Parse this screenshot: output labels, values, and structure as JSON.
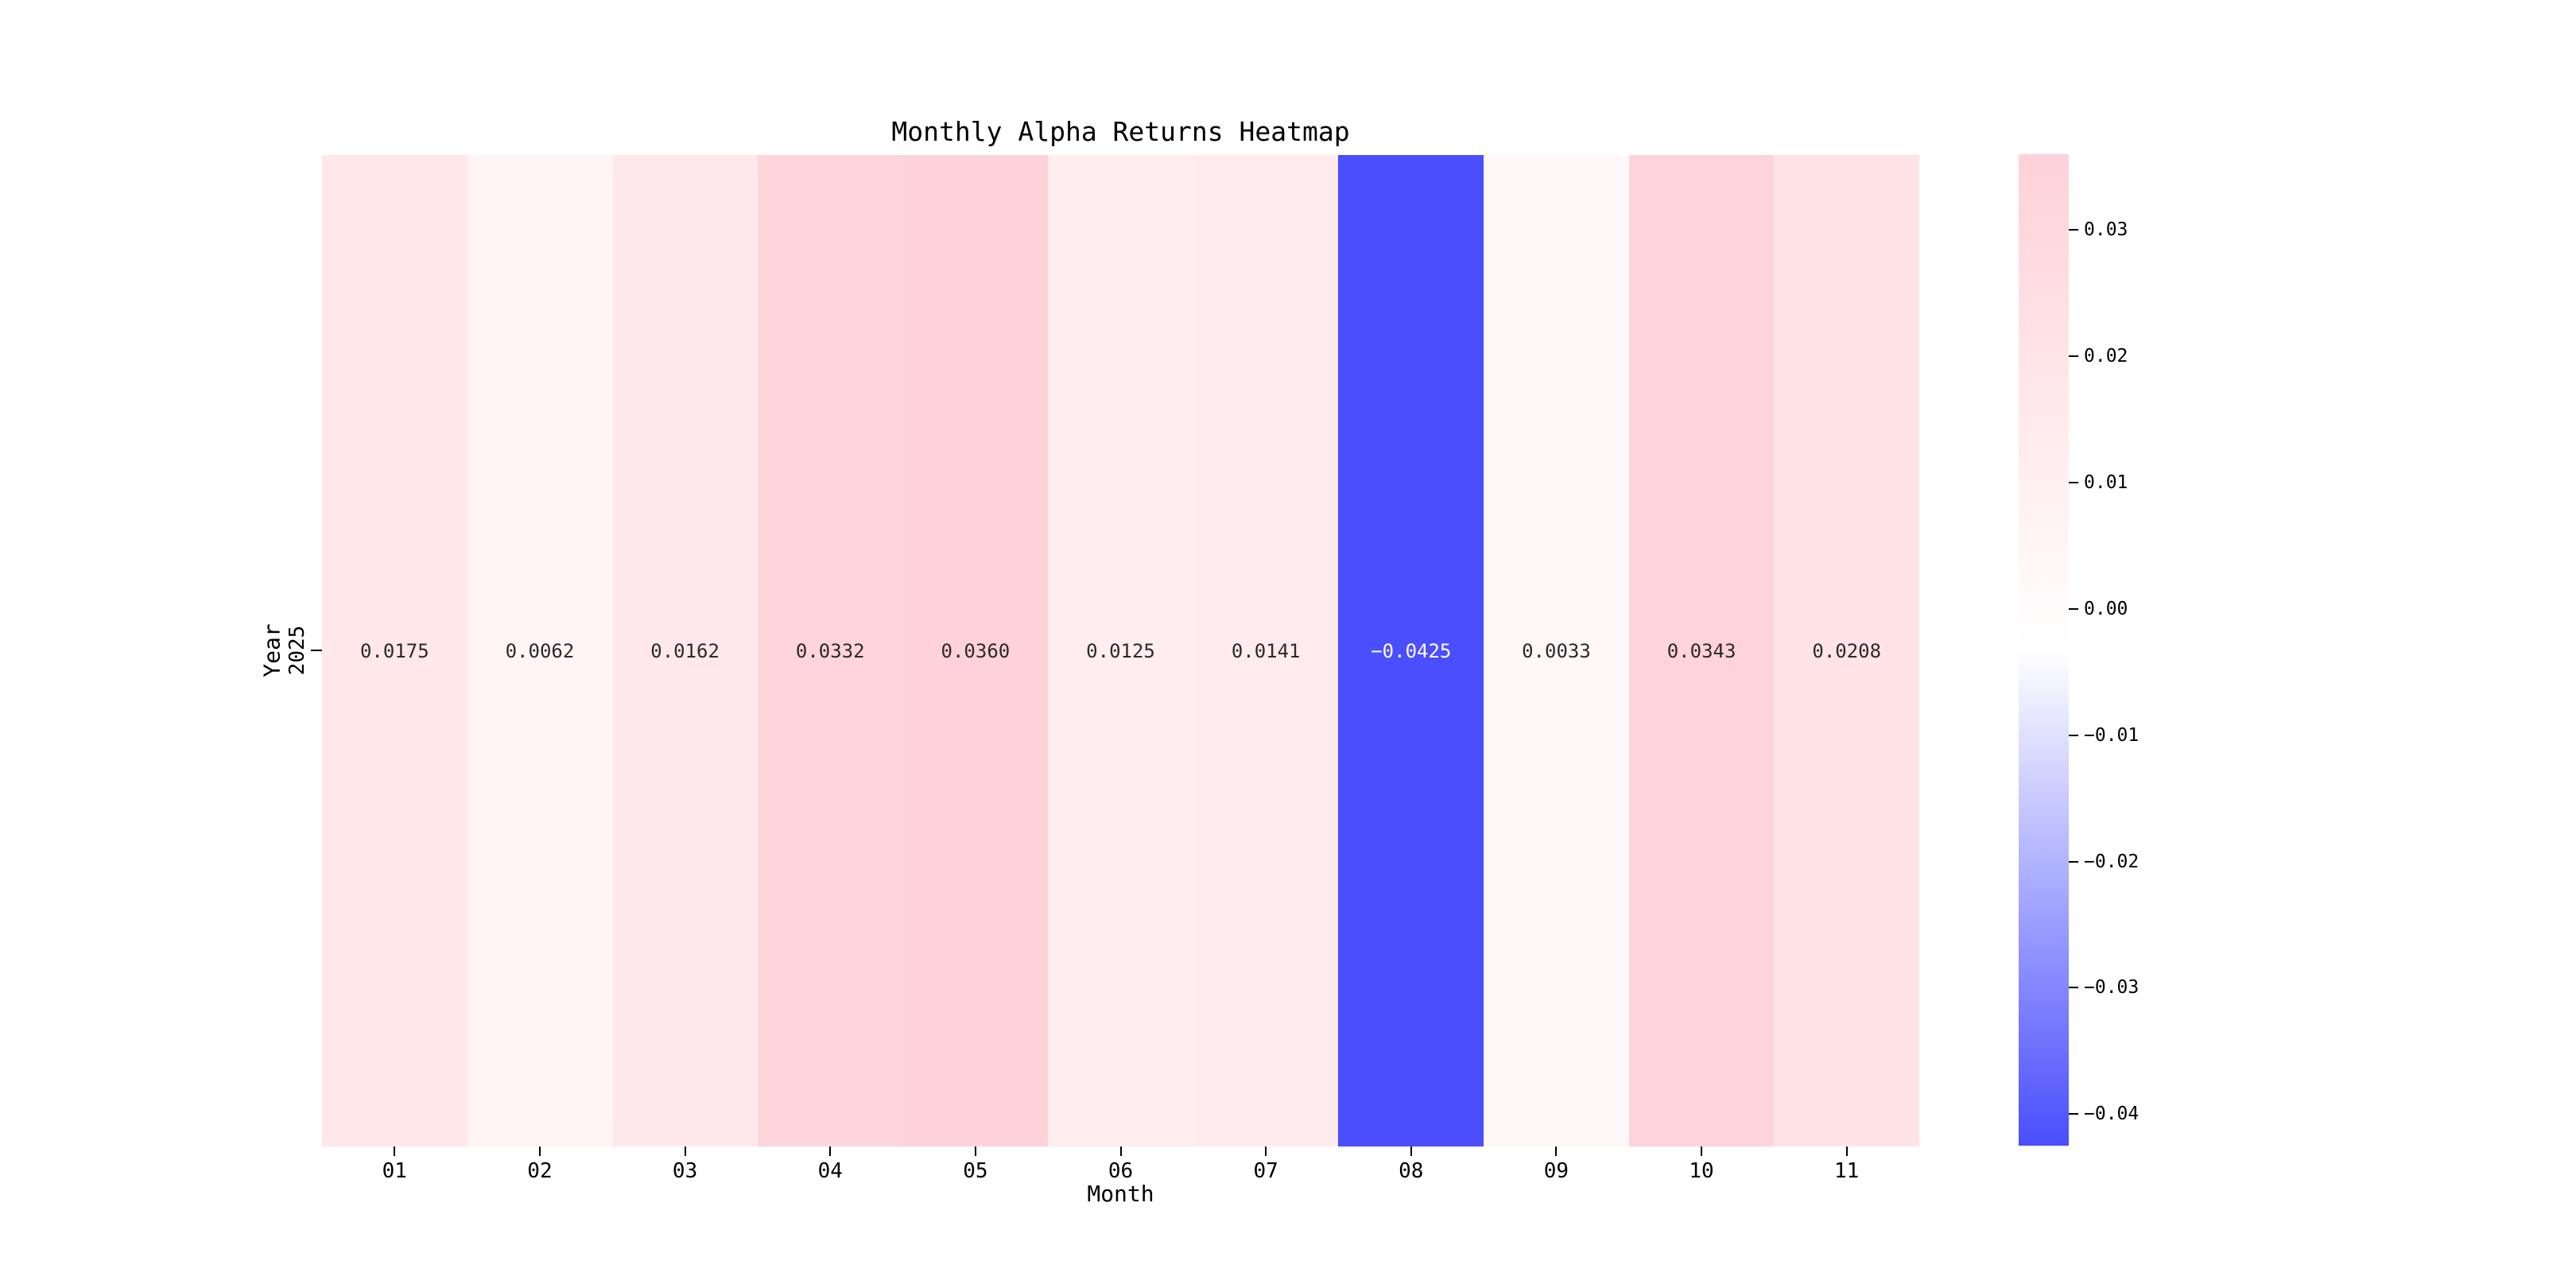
{
  "figure": {
    "background": "#ffffff"
  },
  "chart_data": {
    "type": "heatmap",
    "title": "Monthly Alpha Returns Heatmap",
    "xlabel": "Month",
    "ylabel": "Year",
    "x_categories": [
      "01",
      "02",
      "03",
      "04",
      "05",
      "06",
      "07",
      "08",
      "09",
      "10",
      "11"
    ],
    "y_categories": [
      "2025"
    ],
    "values": [
      [
        0.0175,
        0.0062,
        0.0162,
        0.0332,
        0.036,
        0.0125,
        0.0141,
        -0.0425,
        0.0033,
        0.0343,
        0.0208
      ]
    ],
    "cell_labels": [
      [
        "0.0175",
        "0.0062",
        "0.0162",
        "0.0332",
        "0.0360",
        "0.0125",
        "0.0141",
        "−0.0425",
        "0.0033",
        "0.0343",
        "0.0208"
      ]
    ],
    "vmin": -0.0425,
    "vmax": 0.036,
    "grid": false,
    "legend_position": "colorbar-right",
    "colormap": {
      "min_color": "#4A4EFC",
      "mid_color": "#FFFFFF",
      "max_color": "#FFD1D8",
      "annot_dark_text": "#2B2B2B",
      "annot_light_text": "#FFFFFF"
    },
    "colorbar": {
      "tick_labels": [
        "0.03",
        "0.02",
        "0.01",
        "0.00",
        "−0.01",
        "−0.02",
        "−0.03",
        "−0.04"
      ],
      "tick_values": [
        0.03,
        0.02,
        0.01,
        0.0,
        -0.01,
        -0.02,
        -0.03,
        -0.04
      ]
    }
  }
}
